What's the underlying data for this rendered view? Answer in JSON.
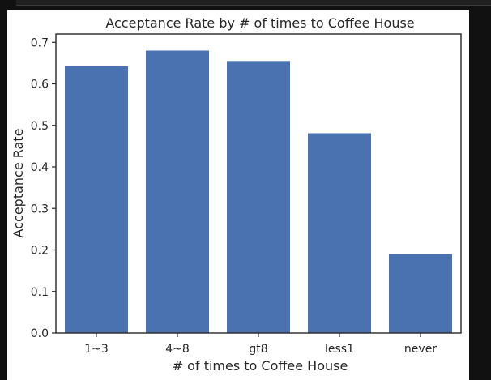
{
  "chart_data": {
    "type": "bar",
    "title": "Acceptance Rate by # of times to Coffee House",
    "xlabel": "# of times to Coffee House",
    "ylabel": "Acceptance Rate",
    "categories": [
      "1~3",
      "4~8",
      "gt8",
      "less1",
      "never"
    ],
    "values": [
      0.642,
      0.68,
      0.655,
      0.481,
      0.19
    ],
    "ylim": [
      0,
      0.72
    ],
    "yticks": [
      0.0,
      0.1,
      0.2,
      0.3,
      0.4,
      0.5,
      0.6,
      0.7
    ],
    "ytick_labels": [
      "0.0",
      "0.1",
      "0.2",
      "0.3",
      "0.4",
      "0.5",
      "0.6",
      "0.7"
    ],
    "grid": false,
    "bar_color": "#4a72b0"
  }
}
